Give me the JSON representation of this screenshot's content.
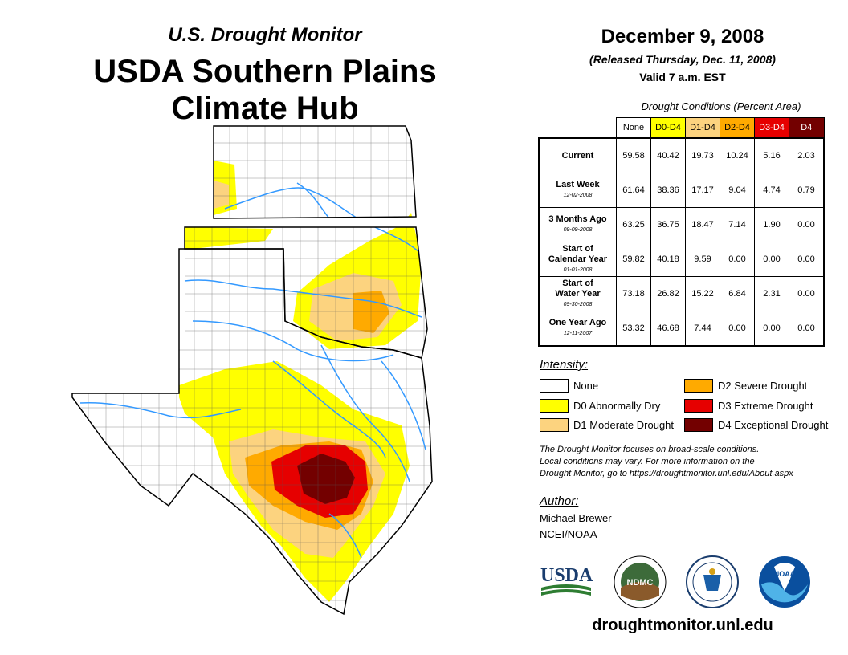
{
  "header": {
    "subtitle": "U.S. Drought Monitor",
    "title_line1": "USDA Southern Plains",
    "title_line2": "Climate Hub"
  },
  "info": {
    "date": "December 9, 2008",
    "released": "(Released Thursday, Dec. 11, 2008)",
    "valid": "Valid 7 a.m. EST"
  },
  "table": {
    "caption": "Drought Conditions (Percent Area)",
    "columns": [
      {
        "label": "None",
        "color": "#ffffff",
        "text_color": "#000000"
      },
      {
        "label": "D0-D4",
        "color": "#ffff00",
        "text_color": "#000000"
      },
      {
        "label": "D1-D4",
        "color": "#fcd37f",
        "text_color": "#000000"
      },
      {
        "label": "D2-D4",
        "color": "#ffaa00",
        "text_color": "#000000"
      },
      {
        "label": "D3-D4",
        "color": "#e60000",
        "text_color": "#ffffff"
      },
      {
        "label": "D4",
        "color": "#730000",
        "text_color": "#ffffff"
      }
    ],
    "rows": [
      {
        "label": "Current",
        "label2": "",
        "date": "",
        "values": [
          "59.58",
          "40.42",
          "19.73",
          "10.24",
          "5.16",
          "2.03"
        ]
      },
      {
        "label": "Last Week",
        "label2": "",
        "date": "12-02-2008",
        "values": [
          "61.64",
          "38.36",
          "17.17",
          "9.04",
          "4.74",
          "0.79"
        ]
      },
      {
        "label": "3 Months Ago",
        "label2": "",
        "date": "09-09-2008",
        "values": [
          "63.25",
          "36.75",
          "18.47",
          "7.14",
          "1.90",
          "0.00"
        ]
      },
      {
        "label": "Start of",
        "label2": "Calendar Year",
        "date": "01-01-2008",
        "values": [
          "59.82",
          "40.18",
          "9.59",
          "0.00",
          "0.00",
          "0.00"
        ]
      },
      {
        "label": "Start of",
        "label2": "Water Year",
        "date": "09-30-2008",
        "values": [
          "73.18",
          "26.82",
          "15.22",
          "6.84",
          "2.31",
          "0.00"
        ]
      },
      {
        "label": "One Year Ago",
        "label2": "",
        "date": "12-11-2007",
        "values": [
          "53.32",
          "46.68",
          "7.44",
          "0.00",
          "0.00",
          "0.00"
        ]
      }
    ]
  },
  "legend": {
    "title": "Intensity:",
    "items": [
      {
        "label": "None",
        "color": "#ffffff"
      },
      {
        "label": "D0 Abnormally Dry",
        "color": "#ffff00"
      },
      {
        "label": "D1 Moderate Drought",
        "color": "#fcd37f"
      },
      {
        "label": "D2 Severe Drought",
        "color": "#ffaa00"
      },
      {
        "label": "D3 Extreme Drought",
        "color": "#e60000"
      },
      {
        "label": "D4 Exceptional Drought",
        "color": "#730000"
      }
    ]
  },
  "note": {
    "line1": "The Drought Monitor focuses on broad-scale conditions.",
    "line2": "Local conditions may vary. For more information on the",
    "line3": "Drought Monitor, go to https://droughtmonitor.unl.edu/About.aspx"
  },
  "author": {
    "title": "Author:",
    "name": "Michael Brewer",
    "org": "NCEI/NOAA"
  },
  "logos": {
    "usda": "USDA",
    "ndmc": "NDMC",
    "noaa": "NOAA"
  },
  "website": "droughtmonitor.unl.edu"
}
